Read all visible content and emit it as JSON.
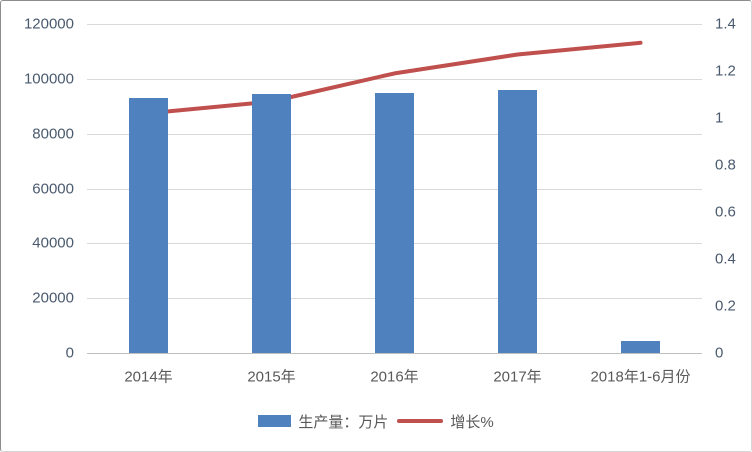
{
  "chart_data": {
    "type": "combo_bar_line",
    "title": "",
    "categories": [
      "2014年",
      "2015年",
      "2016年",
      "2017年",
      "2018年1-6月份"
    ],
    "series": [
      {
        "name": "生产量：万片",
        "type": "bar",
        "axis": "left",
        "color": "#4E81BD",
        "values": [
          93000,
          94500,
          95000,
          96000,
          4500
        ]
      },
      {
        "name": "增长%",
        "type": "line",
        "axis": "right",
        "color": "#C0504D",
        "values": [
          1.02,
          1.07,
          1.19,
          1.27,
          1.32
        ]
      }
    ],
    "left_axis": {
      "min": 0,
      "max": 120000,
      "step": 20000,
      "tick_labels_top_down": [
        "120000",
        "100000",
        "80000",
        "60000",
        "40000",
        "20000",
        "0"
      ]
    },
    "right_axis": {
      "min": 0,
      "max": 1.4,
      "step": 0.2,
      "tick_labels_top_down": [
        "1.4",
        "1.2",
        "1",
        "0.8",
        "0.6",
        "0.4",
        "0.2",
        "0"
      ]
    },
    "legend_position": "bottom",
    "gridlines": "horizontal"
  },
  "colors": {
    "bar": "#4E81BD",
    "line": "#C0504D",
    "gridline": "#D9D9D9",
    "axis_line": "#BFBFBF",
    "numeric_tick_label": "#4A5A6E",
    "category_label": "#595959",
    "background": "#FFFFFF",
    "border": "#8C8C8C"
  }
}
